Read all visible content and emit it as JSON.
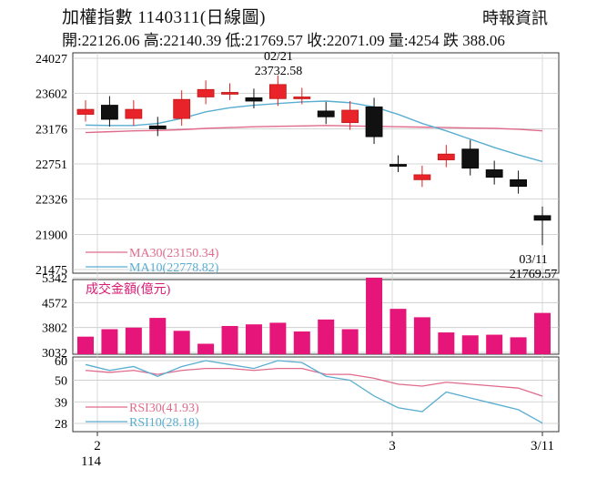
{
  "header": {
    "title": "加權指數 1140311(日線圖)",
    "source": "時報資訊",
    "ohlc_line": "開:22126.06 高:22140.39 低:21769.57 收:22071.09 量:4254 跌 388.06"
  },
  "chart_data": [
    {
      "type": "candlestick",
      "title": "加權指數 1140311(日線圖)",
      "y_ticks": [
        24027,
        23602,
        23176,
        22751,
        22326,
        21900,
        21475
      ],
      "ylim": [
        21475,
        24027
      ],
      "candles": [
        {
          "o": 23350,
          "c": 23410
        },
        {
          "o": 23460,
          "c": 23290
        },
        {
          "o": 23300,
          "c": 23410
        },
        {
          "o": 23210,
          "c": 23175
        },
        {
          "o": 23300,
          "c": 23530
        },
        {
          "o": 23560,
          "c": 23650
        },
        {
          "o": 23610,
          "c": 23615
        },
        {
          "o": 23550,
          "c": 23510
        },
        {
          "o": 23540,
          "c": 23710
        },
        {
          "o": 23560,
          "c": 23560
        },
        {
          "o": 23390,
          "c": 23320
        },
        {
          "o": 23250,
          "c": 23400
        },
        {
          "o": 23440,
          "c": 23080
        },
        {
          "o": 22745,
          "c": 22740
        },
        {
          "o": 22560,
          "c": 22620
        },
        {
          "o": 22800,
          "c": 22870
        },
        {
          "o": 22930,
          "c": 22700
        },
        {
          "o": 22680,
          "c": 22590
        },
        {
          "o": 22560,
          "c": 22480
        },
        {
          "o": 22126.06,
          "c": 22071.09
        }
      ],
      "series": [
        {
          "name": "MA30",
          "value_label": "23150.34",
          "color": "#e06a8c",
          "values": [
            23130,
            23140,
            23150,
            23155,
            23165,
            23180,
            23190,
            23200,
            23205,
            23210,
            23215,
            23210,
            23205,
            23200,
            23195,
            23190,
            23185,
            23180,
            23170,
            23150.34
          ]
        },
        {
          "name": "MA10",
          "value_label": "22778.82",
          "color": "#5aaed0",
          "values": [
            23220,
            23215,
            23215,
            23240,
            23300,
            23380,
            23430,
            23460,
            23480,
            23500,
            23510,
            23490,
            23440,
            23350,
            23240,
            23150,
            23050,
            22950,
            22860,
            22778.82
          ]
        }
      ],
      "annotations": [
        {
          "date": "02/21",
          "value": "23732.58"
        },
        {
          "date": "03/11",
          "value": "21769.57"
        }
      ]
    },
    {
      "type": "bar",
      "title": "成交金額(億元)",
      "y_ticks": [
        5342,
        4572,
        3802,
        3032
      ],
      "ylim": [
        3032,
        5342
      ],
      "values": [
        3520,
        3750,
        3800,
        4100,
        3700,
        3300,
        3850,
        3900,
        3950,
        3680,
        4050,
        3750,
        5342,
        4380,
        4120,
        3650,
        3560,
        3580,
        3500,
        4254
      ]
    },
    {
      "type": "line",
      "y_ticks": [
        60,
        50,
        39,
        28
      ],
      "ylim": [
        28,
        60
      ],
      "series": [
        {
          "name": "RSI30",
          "value_label": "41.93",
          "color": "#e06a8c",
          "values": [
            55,
            54,
            55,
            53,
            55,
            56,
            56,
            55,
            56,
            56,
            53,
            53,
            51,
            48,
            47,
            49,
            48,
            47,
            46,
            41.93
          ]
        },
        {
          "name": "RSI10",
          "value_label": "28.18",
          "color": "#5aaed0",
          "values": [
            58,
            55,
            57,
            52,
            57,
            60,
            58,
            56,
            60,
            59,
            52,
            50,
            42,
            36,
            34,
            44,
            41,
            38,
            35,
            28.18
          ]
        }
      ],
      "x_ticks": [
        "2",
        "3",
        "3/11"
      ],
      "x_sub_label": "114"
    }
  ]
}
